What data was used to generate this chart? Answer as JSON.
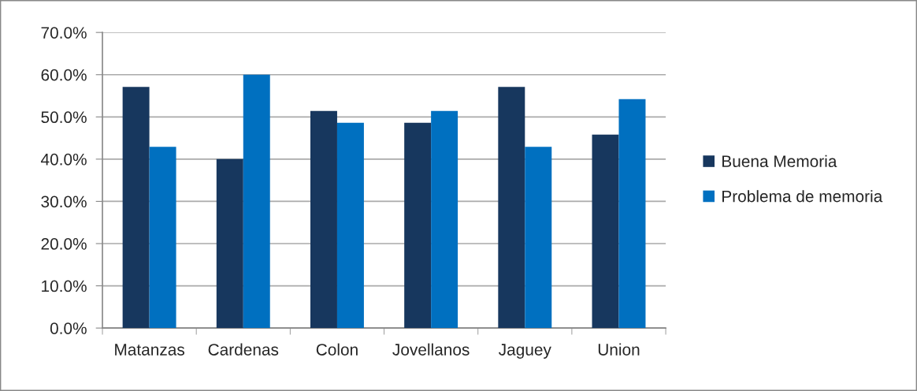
{
  "chart_data": {
    "type": "bar",
    "categories": [
      "Matanzas",
      "Cardenas",
      "Colon",
      "Jovellanos",
      "Jaguey",
      "Union"
    ],
    "series": [
      {
        "name": "Buena Memoria",
        "color": "#17375e",
        "values": [
          57.1,
          40.0,
          51.4,
          48.6,
          57.1,
          45.8
        ]
      },
      {
        "name": "Problema de memoria",
        "color": "#0070c0",
        "values": [
          42.9,
          60.0,
          48.6,
          51.4,
          42.9,
          54.2
        ]
      }
    ],
    "ylim": [
      0,
      70
    ],
    "yticks": [
      {
        "value": 0,
        "label": "0.0%"
      },
      {
        "value": 10,
        "label": "10.0%"
      },
      {
        "value": 20,
        "label": "20.0%"
      },
      {
        "value": 30,
        "label": "30.0%"
      },
      {
        "value": 40,
        "label": "40.0%"
      },
      {
        "value": 50,
        "label": "50.0%"
      },
      {
        "value": 60,
        "label": "60.0%"
      },
      {
        "value": 70,
        "label": "70.0%"
      }
    ],
    "grid": "y",
    "legend": "right"
  }
}
